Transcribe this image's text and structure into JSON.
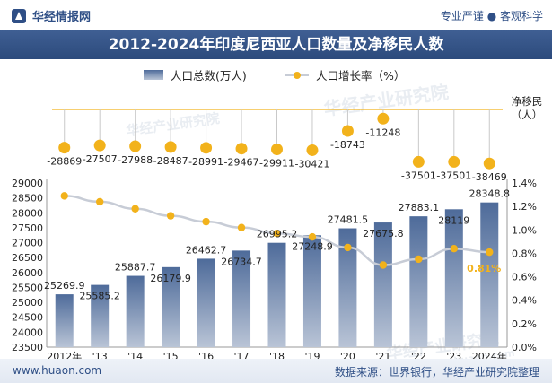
{
  "header": {
    "brand": "华经情报网",
    "tagline": "专业严谨 ● 客观科学"
  },
  "footer": {
    "site": "www.huaon.com",
    "source": "数据来源：世界银行，华经产业研究院整理"
  },
  "watermark": {
    "text": "华经产业研究院",
    "url": "www.huaon.com"
  },
  "colors": {
    "bar_top": "#4e6b9a",
    "bar_bottom": "#b9c4d6",
    "line": "#c7ccd6",
    "dot": "#f2b21b",
    "title_bg": "#2c4a7c"
  },
  "chart_data": {
    "type": "bar",
    "title": "2012-2024年印度尼西亚人口数量及净移民人数",
    "categories": [
      "2012年",
      "'13",
      "'14",
      "'15",
      "'16",
      "'17",
      "'18",
      "'19",
      "'20",
      "'21",
      "'22",
      "'23",
      "2024年"
    ],
    "series": [
      {
        "name": "人口总数(万人)",
        "type": "bar",
        "axis": "left",
        "values": [
          25269.9,
          25585.2,
          25887.7,
          26179.9,
          26462.7,
          26734.7,
          26995.2,
          27248.9,
          27481.5,
          27675.8,
          27883.1,
          28119,
          28348.8
        ],
        "labels": [
          "25269.9",
          "25585.2",
          "25887.7",
          "26179.9",
          "26462.7",
          "26734.7",
          "26995.2",
          "27248.9",
          "27481.5",
          "27675.8",
          "27883.1",
          "28119",
          "28348.8"
        ]
      },
      {
        "name": "人口增长率（%）",
        "type": "line",
        "axis": "right",
        "values": [
          1.29,
          1.24,
          1.18,
          1.12,
          1.07,
          1.02,
          0.97,
          0.94,
          0.85,
          0.7,
          0.75,
          0.84,
          0.81
        ],
        "last_label": "0.81%"
      },
      {
        "name": "净移民（人）",
        "type": "lollipop",
        "values": [
          -28869,
          -27507,
          -27988,
          -28487,
          -28991,
          -29467,
          -29911,
          -30421,
          -18743,
          -11248,
          -37501,
          -37501,
          -38469
        ],
        "labels": [
          "-28869",
          "-27507",
          "-27988",
          "-28487",
          "-28991",
          "-29467",
          "-29911",
          "-30421",
          "-18743",
          "-11248",
          "-37501",
          "-37501",
          "-38469"
        ],
        "unit_label": "净移民（人）"
      }
    ],
    "y_left": {
      "min": 23500,
      "max": 29000,
      "step": 500,
      "ticks": [
        "23500",
        "24000",
        "24500",
        "25000",
        "25500",
        "26000",
        "26500",
        "27000",
        "27500",
        "28000",
        "28500",
        "29000"
      ]
    },
    "y_right": {
      "min": 0,
      "max": 1.4,
      "step": 0.2,
      "ticks": [
        "0.0%",
        "0.2%",
        "0.4%",
        "0.6%",
        "0.8%",
        "1.0%",
        "1.2%",
        "1.4%"
      ]
    },
    "net_range": [
      -40000,
      -10000
    ],
    "grid": false,
    "legend_position": "top-center"
  }
}
